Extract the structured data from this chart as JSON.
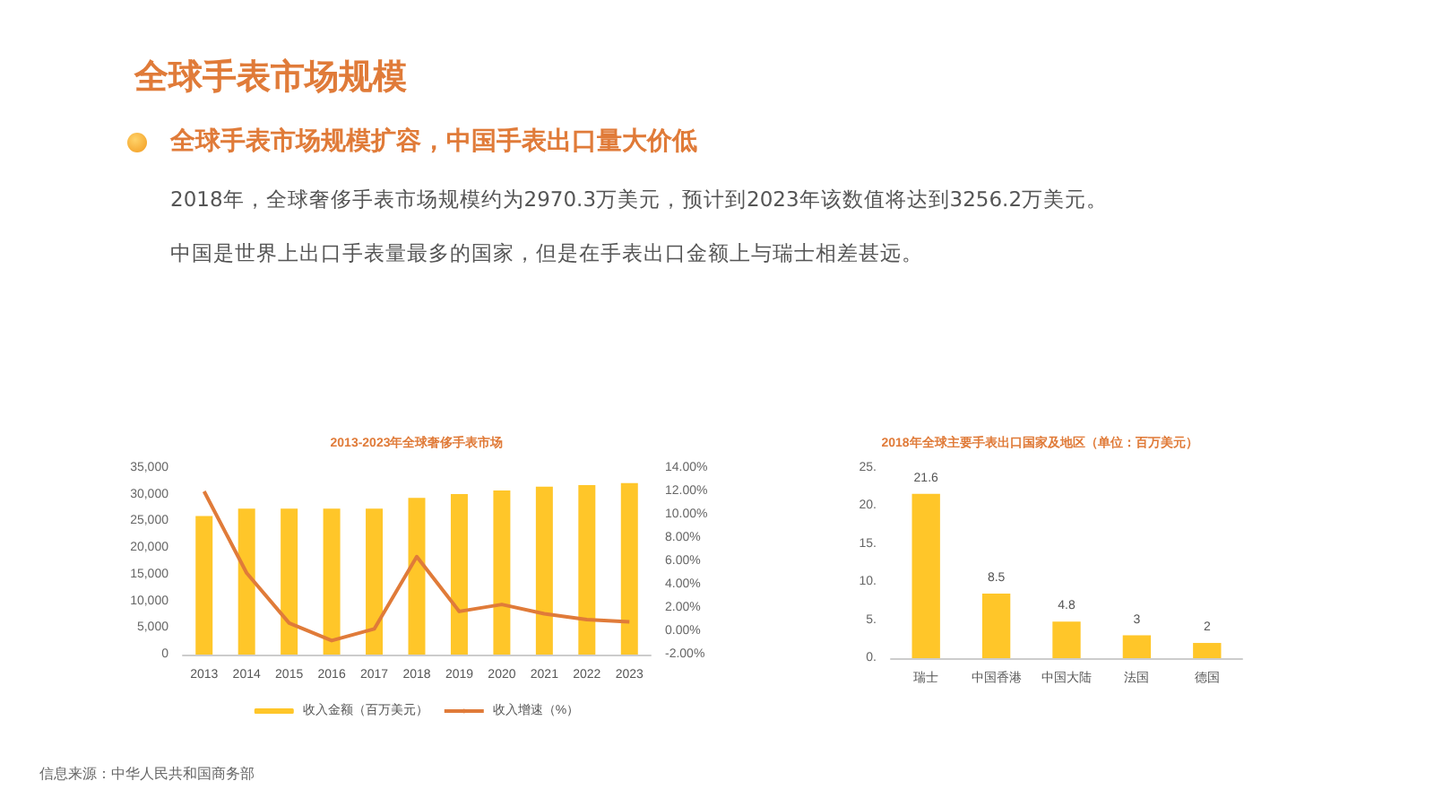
{
  "chart_data": [
    {
      "type": "other",
      "title": "全球手表市场规模",
      "subtitle": "全球手表市场规模扩容，中国手表出口量大价低",
      "annotations": [
        "2018年，全球奢侈手表市场规模约为2970.3万美元，预计到2023年该数值将达到3256.2万美元。",
        "中国是世界上出口手表量最多的国家，但是在手表出口金额上与瑞士相差甚远。",
        "信息来源：中华人民共和国商务部"
      ]
    },
    {
      "type": "bar",
      "title": "2013-2023年全球奢侈手表市场",
      "categories": [
        "2013",
        "2014",
        "2015",
        "2016",
        "2017",
        "2018",
        "2019",
        "2020",
        "2021",
        "2022",
        "2023"
      ],
      "series": [
        {
          "name": "收入金额（百万美元）",
          "color": "#ffc629",
          "values": [
            26000,
            27400,
            27400,
            27400,
            27400,
            29400,
            30100,
            30800,
            31500,
            31800,
            32200
          ]
        },
        {
          "name": "收入增速（%）",
          "type": "line",
          "axis": "y2",
          "color": "#e07b39",
          "values": [
            12.0,
            5.0,
            0.7,
            -0.8,
            0.2,
            6.4,
            1.7,
            2.3,
            1.5,
            1.0,
            0.8
          ]
        }
      ],
      "ylim": [
        0,
        35000
      ],
      "yticks": [
        0,
        {
          "value": 5000,
          "label": "5,000"
        },
        {
          "value": 10000,
          "label": "10,000"
        },
        {
          "value": 15000,
          "label": "15,000"
        },
        {
          "value": 20000,
          "label": "20,000"
        },
        {
          "value": 25000,
          "label": "25,000"
        },
        {
          "value": 30000,
          "label": "30,000"
        },
        {
          "value": 35000,
          "label": "35,000"
        }
      ],
      "y2lim": [
        -2,
        14
      ],
      "y2ticks": [
        {
          "value": -2,
          "label": "-2.00%"
        },
        {
          "value": 0,
          "label": "0.00%"
        },
        {
          "value": 2,
          "label": "2.00%"
        },
        {
          "value": 4,
          "label": "4.00%"
        },
        {
          "value": 6,
          "label": "6.00%"
        },
        {
          "value": 8,
          "label": "8.00%"
        },
        {
          "value": 10,
          "label": "10.00%"
        },
        {
          "value": 12,
          "label": "12.00%"
        },
        {
          "value": 14,
          "label": "14.00%"
        }
      ],
      "legend": "bottom",
      "grid": false,
      "marker": "none"
    },
    {
      "type": "bar",
      "title": "2018年全球主要手表出口国家及地区（单位：百万美元）",
      "categories": [
        "瑞士",
        "中国香港",
        "中国大陆",
        "法国",
        "德国"
      ],
      "values": [
        21.6,
        8.5,
        4.8,
        3,
        2
      ],
      "color": "#ffc629",
      "ylim": [
        0,
        25
      ],
      "yticks": [
        {
          "value": 0,
          "label": "0."
        },
        {
          "value": 5,
          "label": "5."
        },
        {
          "value": 10,
          "label": "10."
        },
        {
          "value": 15,
          "label": "15."
        },
        {
          "value": 20,
          "label": "20."
        },
        {
          "value": 25,
          "label": "25."
        }
      ],
      "data_labels": true,
      "grid": false
    }
  ]
}
